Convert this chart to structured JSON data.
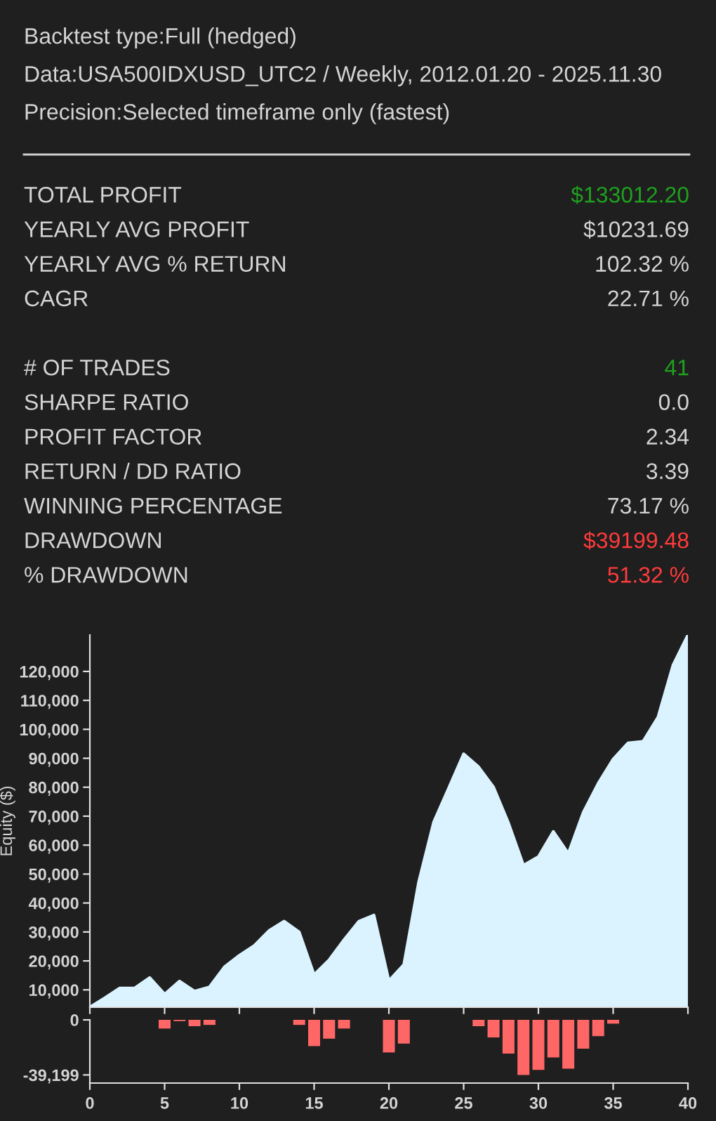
{
  "chart_data": [
    {
      "type": "other",
      "title": "Backtest type:Full (hedged)",
      "subtitle": "Data:USA500IDXUSD_UTC2 / Weekly, 2012.01.20 - 2025.11.30\nPrecision:Selected timeframe only (fastest)",
      "categories": [
        "TOTAL PROFIT",
        "YEARLY AVG PROFIT",
        "YEARLY AVG % RETURN",
        "CAGR",
        null,
        "# OF TRADES",
        "SHARPE RATIO",
        "PROFIT FACTOR",
        "RETURN / DD RATIO",
        "WINNING PERCENTAGE",
        "DRAWDOWN",
        "% DRAWDOWN"
      ],
      "value_labels": [
        "$133012.20",
        "$10231.69",
        "102.32 %",
        "22.71 %",
        null,
        "41",
        "0.0",
        "2.34",
        "3.39",
        "73.17 %",
        "$39199.48",
        "51.32 %"
      ],
      "colors": [
        "#1fa01f",
        "#d4d4d4",
        "#d4d4d4",
        "#d4d4d4",
        null,
        "#1fa01f",
        "#d4d4d4",
        "#d4d4d4",
        "#d4d4d4",
        "#d4d4d4",
        "#ff3b3b",
        "#ff3b3b"
      ]
    },
    {
      "type": "area",
      "ylabel": "Equity ($)",
      "x": [
        0,
        1,
        2,
        3,
        4,
        5,
        6,
        7,
        8,
        9,
        10,
        11,
        12,
        13,
        14,
        15,
        16,
        17,
        18,
        19,
        20,
        21,
        22,
        23,
        24,
        25,
        26,
        27,
        28,
        29,
        30,
        31,
        32,
        33,
        34,
        35,
        36,
        37,
        38,
        39,
        40
      ],
      "series": [
        {
          "color": "#dbf3ff",
          "values": [
            4000,
            7200,
            10600,
            10600,
            14200,
            8500,
            13000,
            9500,
            11000,
            17900,
            21900,
            25300,
            30500,
            33700,
            30000,
            15200,
            20300,
            27300,
            33700,
            35800,
            13100,
            18700,
            47400,
            68000,
            79700,
            91500,
            87000,
            80000,
            67600,
            53000,
            56000,
            64700,
            57100,
            71300,
            81300,
            89700,
            95300,
            95800,
            104200,
            122100,
            132600
          ]
        }
      ],
      "xlim": [
        0,
        40
      ],
      "xticks": [
        0,
        5,
        10,
        15,
        20,
        25,
        30,
        35,
        40
      ],
      "ylim": [
        4000,
        132600
      ],
      "yticks": [
        {
          "value": 10000,
          "label": "10,000"
        },
        {
          "value": 20000,
          "label": "20,000"
        },
        {
          "value": 30000,
          "label": "30,000"
        },
        {
          "value": 40000,
          "label": "40,000"
        },
        {
          "value": 50000,
          "label": "50,000"
        },
        {
          "value": 60000,
          "label": "60,000"
        },
        {
          "value": 70000,
          "label": "70,000"
        },
        {
          "value": 80000,
          "label": "80,000"
        },
        {
          "value": 90000,
          "label": "90,000"
        },
        {
          "value": 100000,
          "label": "100,000"
        },
        {
          "value": 110000,
          "label": "110,000"
        },
        {
          "value": 120000,
          "label": "120,000"
        }
      ],
      "tick_labels": "y",
      "grid": false,
      "legend": false
    },
    {
      "type": "bar",
      "x": [
        5,
        6,
        7,
        8,
        14,
        15,
        16,
        17,
        20,
        21,
        26,
        27,
        28,
        29,
        30,
        31,
        32,
        33,
        34,
        35
      ],
      "series": [
        {
          "color": "#ff6666",
          "values": [
            -6200,
            -900,
            -4500,
            -3600,
            -3600,
            -18700,
            -13400,
            -6200,
            -23200,
            -16900,
            -4500,
            -12500,
            -24000,
            -39199,
            -35600,
            -26700,
            -34700,
            -20500,
            -11600,
            -2700
          ]
        }
      ],
      "xlim": [
        0,
        40
      ],
      "xticks": [
        0,
        5,
        10,
        15,
        20,
        25,
        30,
        35,
        40
      ],
      "ylim": [
        -45000,
        0
      ],
      "yticks": [
        0,
        {
          "value": -39199,
          "label": "-39,199"
        }
      ],
      "grid": false,
      "legend": false
    }
  ]
}
